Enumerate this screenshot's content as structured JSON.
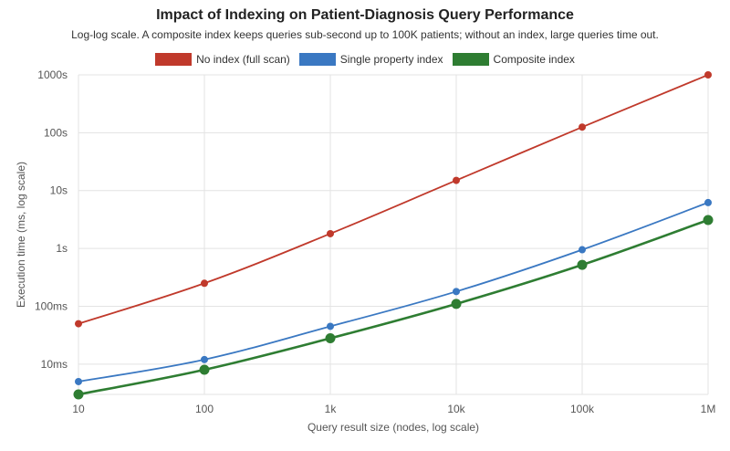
{
  "chart_data": {
    "type": "line",
    "title": "Impact of Indexing on Patient-Diagnosis Query Performance",
    "subtitle": "Log-log scale. A composite index keeps queries sub-second up to 100K patients; without an index, large queries time out.",
    "xlabel": "Query result size (nodes, log scale)",
    "ylabel": "Execution time (ms, log scale)",
    "x_scale": "log",
    "y_scale": "log",
    "x": [
      10,
      100,
      1000,
      10000,
      100000,
      1000000
    ],
    "x_tick_labels": [
      "10",
      "100",
      "1k",
      "10k",
      "100k",
      "1M"
    ],
    "xlim": [
      10,
      1000000
    ],
    "ylim_ms": [
      3,
      1000000
    ],
    "y_ticks_ms": [
      10,
      100,
      1000,
      10000,
      100000,
      1000000
    ],
    "y_tick_labels": [
      "10ms",
      "100ms",
      "1s",
      "10s",
      "100s",
      "1000s"
    ],
    "grid": true,
    "legend_position": "top-center",
    "series": [
      {
        "name": "No index (full scan)",
        "color": "#c0392b",
        "values_ms": [
          50,
          250,
          1800,
          15000,
          125000,
          1000000
        ]
      },
      {
        "name": "Single property index",
        "color": "#3a78c2",
        "values_ms": [
          5,
          12,
          45,
          180,
          950,
          6200
        ]
      },
      {
        "name": "Composite index",
        "color": "#2e7d32",
        "values_ms": [
          3,
          8,
          28,
          110,
          520,
          3100
        ]
      }
    ]
  }
}
